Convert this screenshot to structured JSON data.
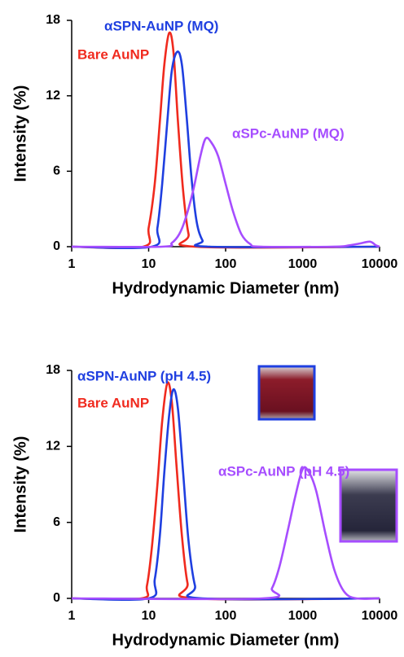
{
  "chart_data": [
    {
      "type": "line",
      "xscale": "log",
      "xlabel": "Hydrodynamic Diameter (nm)",
      "ylabel": "Intensity (%)",
      "xlim": [
        1,
        10000
      ],
      "xticks": [
        1,
        10,
        100,
        1000,
        10000
      ],
      "ylim": [
        0,
        18
      ],
      "yticks": [
        0,
        6,
        12,
        18
      ],
      "series": [
        {
          "name": "Bare AuNP",
          "color": "#f02a1e",
          "x": [
            1,
            8.5,
            10,
            12,
            14,
            16,
            18.5,
            21,
            24,
            28,
            33,
            40,
            10000
          ],
          "values": [
            0,
            0,
            1.5,
            5,
            10,
            14.5,
            17,
            15.5,
            10,
            4.5,
            1,
            0,
            0
          ]
        },
        {
          "name": "αSPN-AuNP (MQ)",
          "color": "#1f3fe0",
          "x": [
            1,
            11,
            13,
            15,
            17.5,
            20,
            23.5,
            27,
            31,
            36,
            42,
            50,
            62,
            10000
          ],
          "values": [
            0,
            0,
            1.5,
            5,
            10,
            14,
            15.5,
            14.5,
            10.5,
            5.5,
            2,
            0.5,
            0,
            0
          ]
        },
        {
          "name": "αSPc-AuNP (MQ)",
          "color": "#a64dff",
          "x": [
            1,
            15,
            20,
            25,
            30,
            38,
            47,
            55,
            65,
            80,
            100,
            125,
            160,
            210,
            290,
            2500,
            4000,
            5500,
            7500,
            9000,
            10000
          ],
          "values": [
            0,
            0,
            0.3,
            1,
            2.2,
            4.5,
            7.2,
            8.6,
            8.3,
            7.2,
            5,
            2.8,
            1,
            0.2,
            0,
            0,
            0.1,
            0.25,
            0.4,
            0.1,
            0
          ]
        }
      ]
    },
    {
      "type": "line",
      "xscale": "log",
      "xlabel": "Hydrodynamic Diameter (nm)",
      "ylabel": "Intensity (%)",
      "xlim": [
        1,
        10000
      ],
      "xticks": [
        1,
        10,
        100,
        1000,
        10000
      ],
      "ylim": [
        0,
        18
      ],
      "yticks": [
        0,
        6,
        12,
        18
      ],
      "series": [
        {
          "name": "Bare AuNP",
          "color": "#f02a1e",
          "x": [
            1,
            8,
            9.5,
            11,
            13,
            15,
            17.5,
            20,
            23,
            27,
            32,
            40,
            10000
          ],
          "values": [
            0,
            0,
            1,
            4,
            9,
            14,
            17,
            15.5,
            10.5,
            5,
            1.2,
            0,
            0
          ]
        },
        {
          "name": "αSPN-AuNP (pH 4.5)",
          "color": "#1f3fe0",
          "x": [
            1,
            10,
            12,
            14,
            16,
            18.5,
            21,
            24,
            28,
            33,
            40,
            50,
            10000
          ],
          "values": [
            0,
            0,
            1.5,
            5,
            10,
            14.5,
            16.5,
            15,
            10,
            4.5,
            1,
            0,
            0
          ]
        },
        {
          "name": "αSPc-AuNP (pH 4.5)",
          "color": "#a64dff",
          "x": [
            1,
            300,
            400,
            500,
            650,
            800,
            1000,
            1200,
            1500,
            2000,
            2600,
            3500,
            5000,
            10000
          ],
          "values": [
            0,
            0,
            0.8,
            2.5,
            5.5,
            8,
            10.2,
            10,
            8.5,
            5,
            2.2,
            0.5,
            0,
            0
          ]
        }
      ]
    }
  ]
}
